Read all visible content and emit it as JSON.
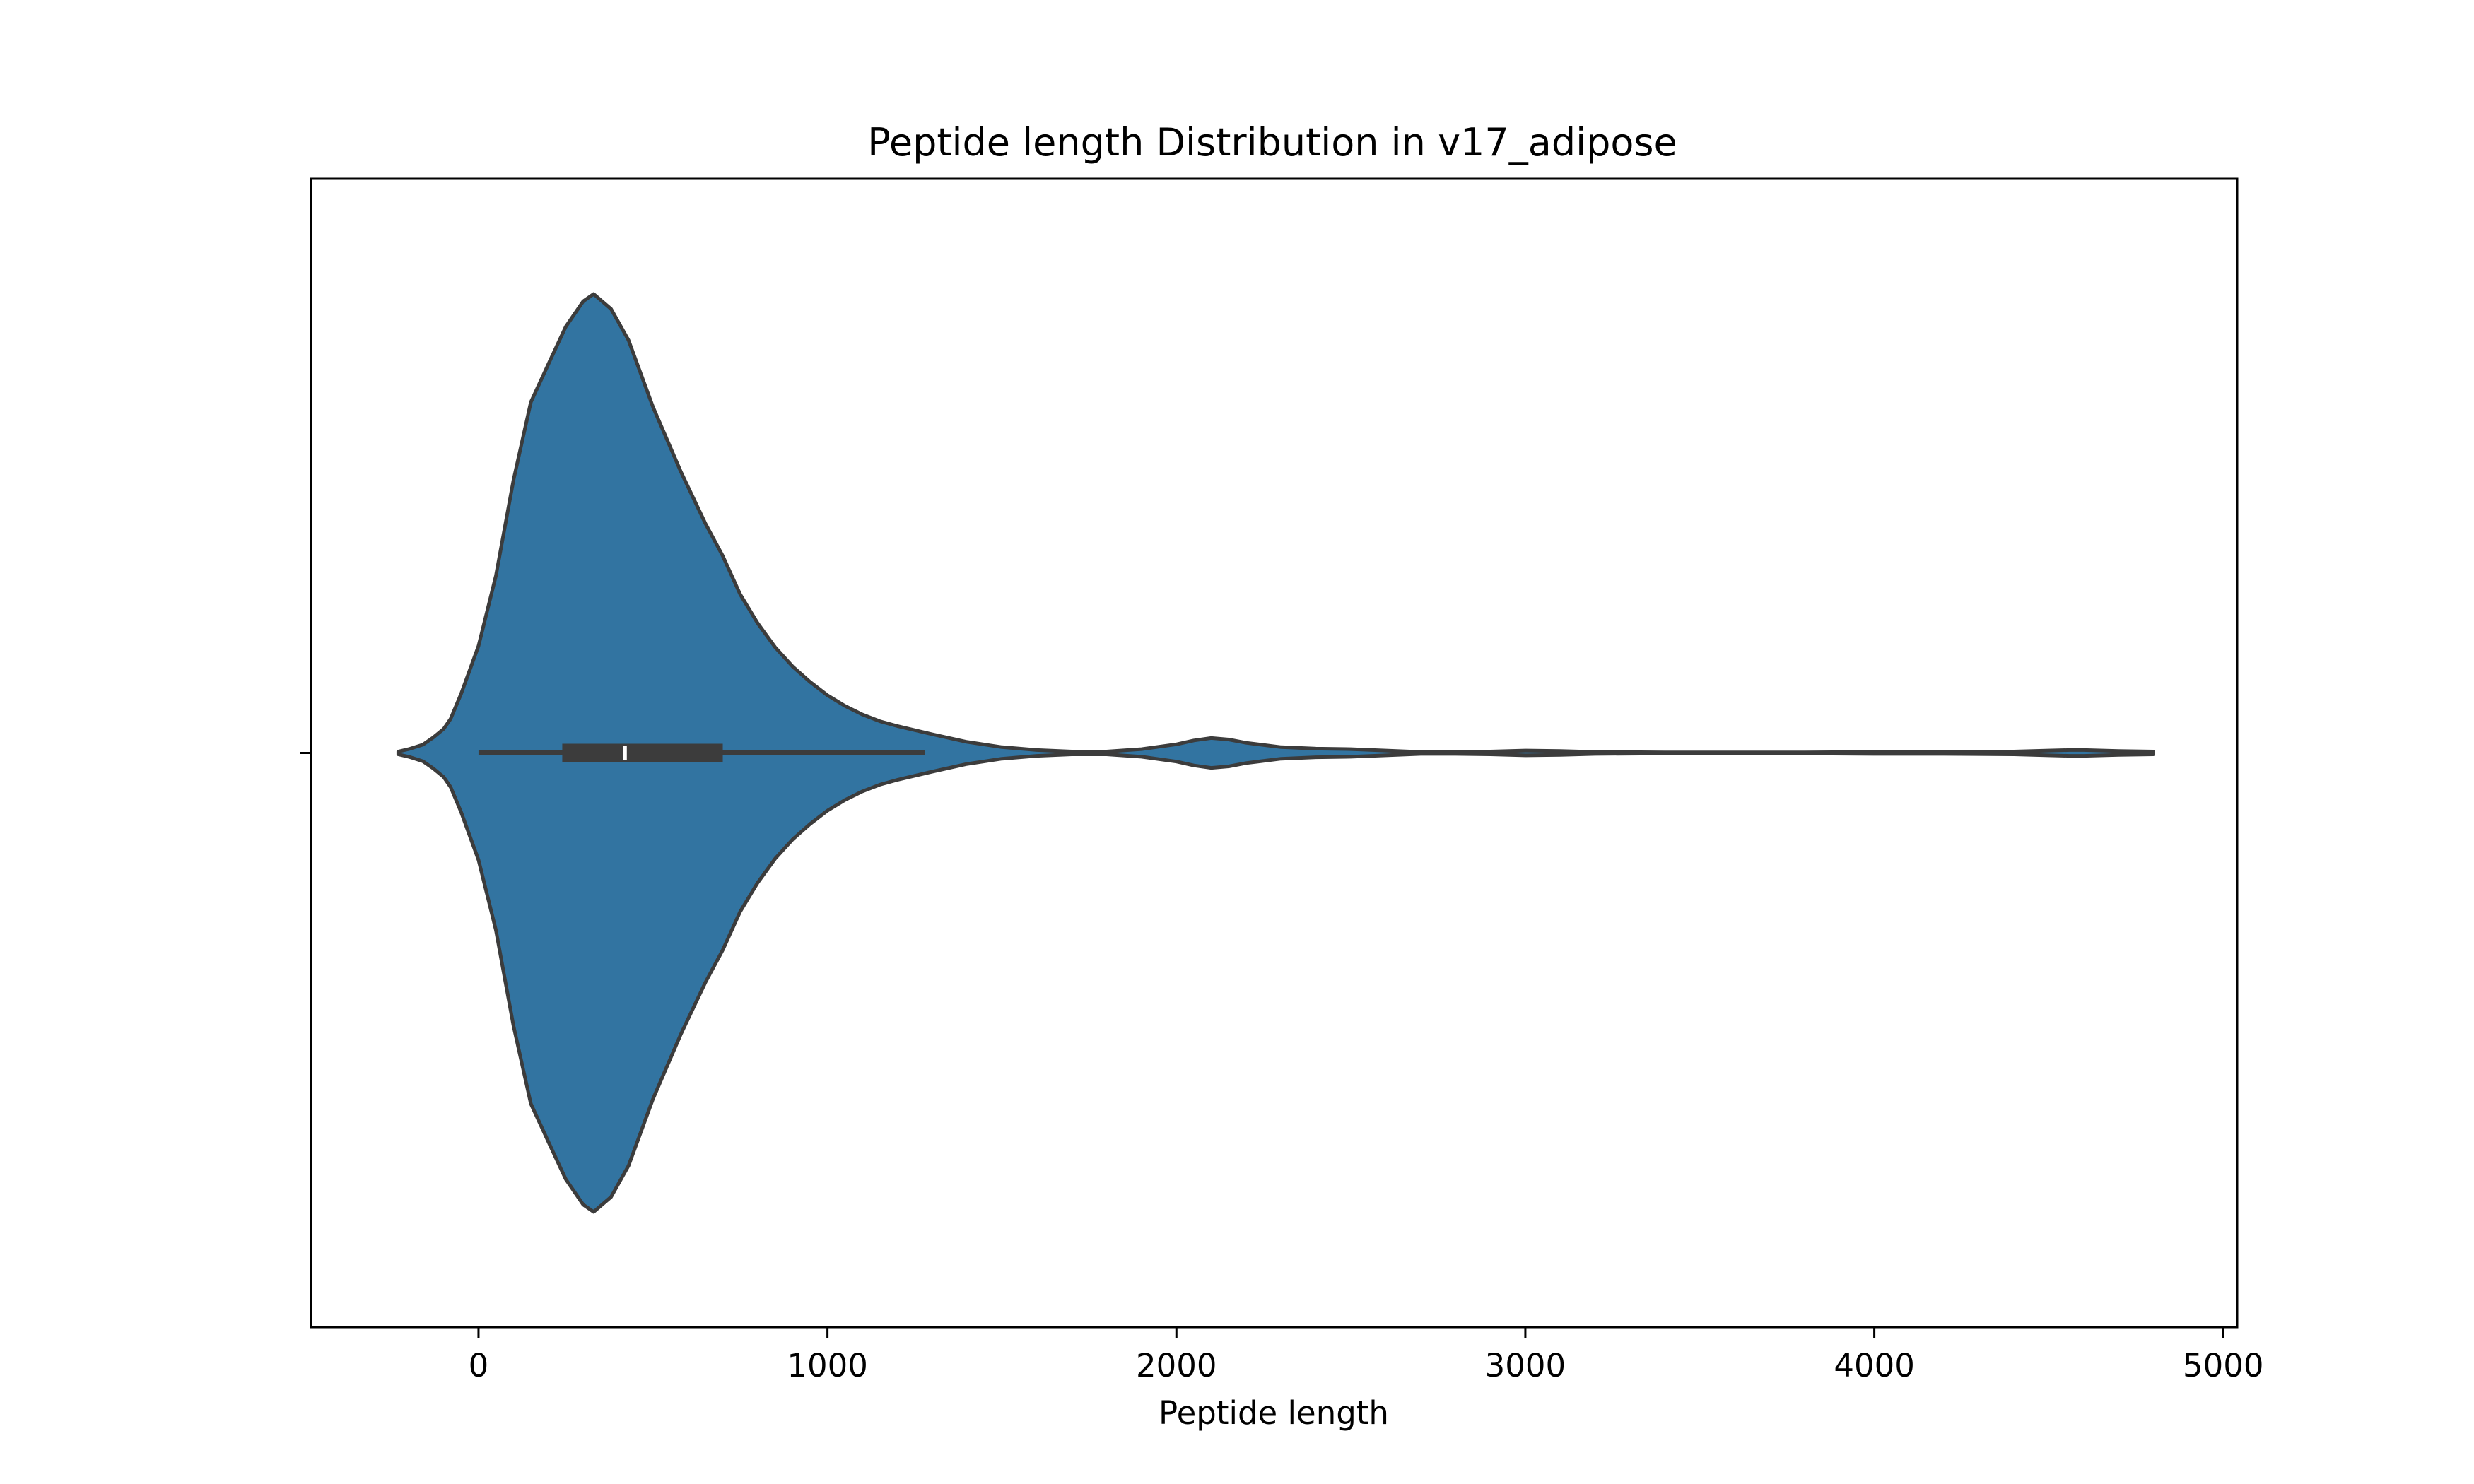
{
  "chart_data": {
    "type": "violin",
    "title": "Peptide length Distribution in v17_adipose",
    "xlabel": "Peptide length",
    "ylabel": "",
    "xlim": [
      -480,
      5040
    ],
    "xticks": [
      0,
      1000,
      2000,
      3000,
      4000,
      5000
    ],
    "xtick_labels": [
      "0",
      "1000",
      "2000",
      "3000",
      "4000",
      "5000"
    ],
    "yticks": [
      ""
    ],
    "grid": false,
    "legend": "none",
    "colors": {
      "violin_fill": "#3274a1",
      "violin_edge": "#3c3c3c",
      "box": "#3c3c3c",
      "median": "#ffffff"
    },
    "series": [
      {
        "density_profile": {
          "x": [
            -230,
            -200,
            -160,
            -130,
            -100,
            -80,
            -50,
            0,
            50,
            100,
            150,
            200,
            250,
            300,
            330,
            380,
            430,
            500,
            580,
            650,
            700,
            750,
            800,
            850,
            900,
            950,
            1000,
            1050,
            1100,
            1150,
            1200,
            1300,
            1400,
            1500,
            1600,
            1700,
            1800,
            1900,
            2000,
            2050,
            2100,
            2150,
            2200,
            2300,
            2400,
            2500,
            2600,
            2700,
            2800,
            2900,
            3000,
            3100,
            3200,
            3400,
            3600,
            3800,
            4000,
            4200,
            4400,
            4500,
            4560,
            4600,
            4700,
            4800
          ],
          "half_width": [
            0.003,
            0.008,
            0.017,
            0.032,
            0.05,
            0.071,
            0.123,
            0.223,
            0.369,
            0.567,
            0.73,
            0.809,
            0.887,
            0.94,
            0.955,
            0.924,
            0.859,
            0.72,
            0.585,
            0.478,
            0.41,
            0.33,
            0.27,
            0.22,
            0.18,
            0.148,
            0.12,
            0.098,
            0.08,
            0.066,
            0.056,
            0.039,
            0.023,
            0.012,
            0.006,
            0.003,
            0.003,
            0.008,
            0.018,
            0.026,
            0.031,
            0.028,
            0.021,
            0.012,
            0.009,
            0.008,
            0.005,
            0.002,
            0.002,
            0.003,
            0.005,
            0.004,
            0.002,
            0.001,
            0.001,
            0.001,
            0.002,
            0.002,
            0.003,
            0.005,
            0.006,
            0.006,
            0.004,
            0.003
          ]
        },
        "whisker_low": 0,
        "q1": 240,
        "median": 420,
        "q3": 700,
        "whisker_high": 1280
      }
    ]
  }
}
